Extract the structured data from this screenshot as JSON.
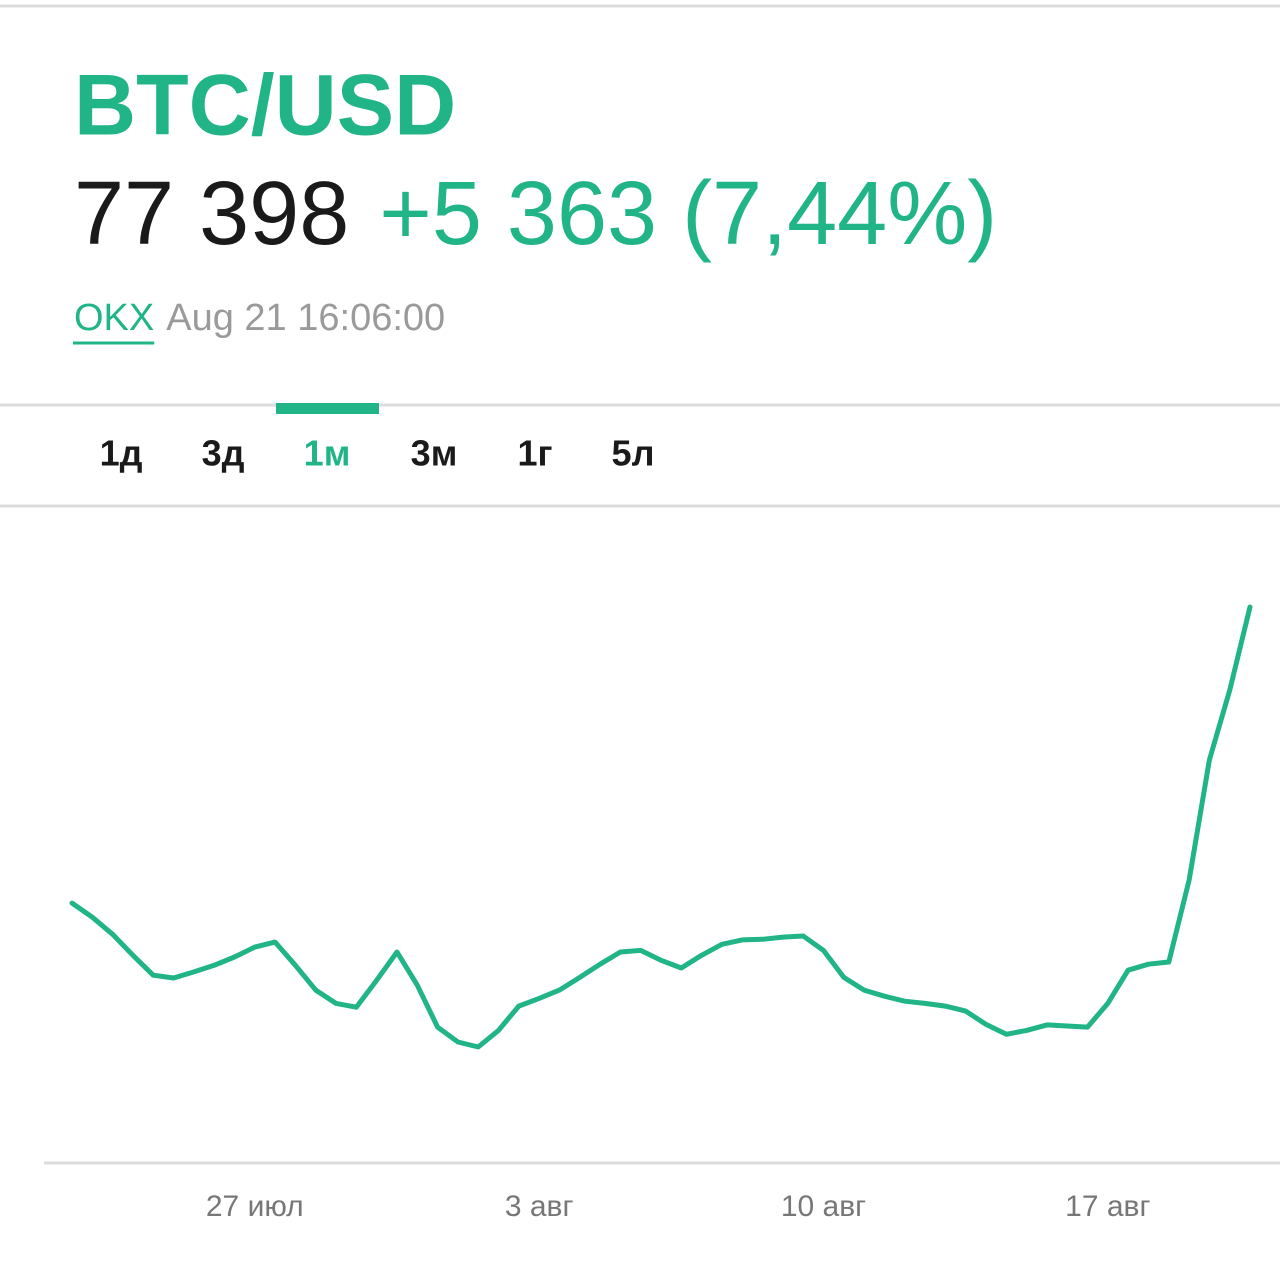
{
  "header": {
    "title": "BTC/USD",
    "price": "77 398",
    "change": "+5 363 (7,44%)",
    "source": "OKX",
    "timestamp": "Aug 21 16:06:00"
  },
  "tabs": {
    "items": [
      "1д",
      "3д",
      "1м",
      "3м",
      "1г",
      "5л"
    ],
    "active": 2
  },
  "chart_data": {
    "type": "line",
    "color": "#20b486",
    "categories": [
      null,
      null,
      null,
      null,
      null,
      null,
      null,
      null,
      null,
      "27 июл",
      null,
      null,
      null,
      null,
      null,
      null,
      null,
      null,
      null,
      null,
      null,
      null,
      null,
      "3 авг",
      null,
      null,
      null,
      null,
      null,
      null,
      null,
      null,
      null,
      null,
      null,
      null,
      null,
      "10 авг",
      null,
      null,
      null,
      null,
      null,
      null,
      null,
      null,
      null,
      null,
      null,
      null,
      null,
      "17 авг",
      null,
      null,
      null,
      null,
      null,
      null,
      null
    ],
    "values": [
      72035,
      71780,
      71470,
      71090,
      70730,
      70680,
      70790,
      70910,
      71060,
      71240,
      71330,
      70910,
      70460,
      70220,
      70150,
      70640,
      71150,
      70550,
      69790,
      69520,
      69430,
      69730,
      70170,
      70310,
      70460,
      70690,
      70930,
      71150,
      71180,
      71000,
      70860,
      71090,
      71290,
      71370,
      71380,
      71420,
      71440,
      71180,
      70690,
      70460,
      70350,
      70260,
      70220,
      70170,
      70080,
      69840,
      69660,
      69730,
      69830,
      69810,
      69790,
      70220,
      70820,
      70930,
      70970,
      72450,
      74630,
      75890,
      77398
    ]
  }
}
